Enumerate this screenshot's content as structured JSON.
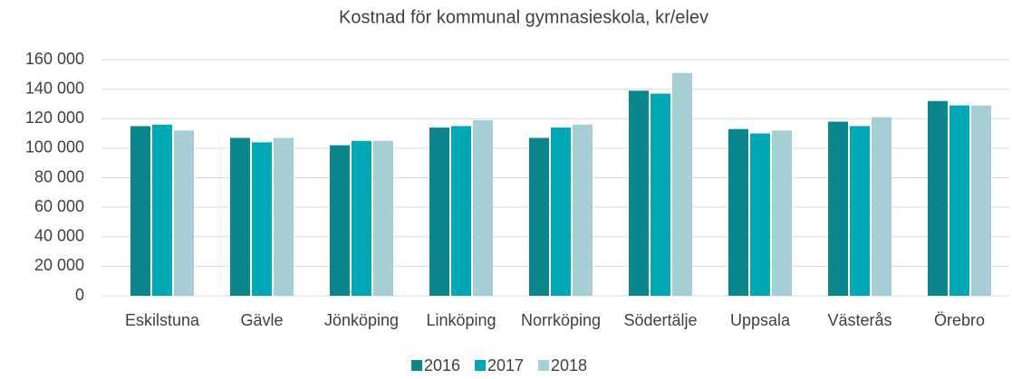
{
  "chart_data": {
    "type": "bar",
    "title": "Kostnad för kommunal gymnasieskola, kr/elev",
    "categories": [
      "Eskilstuna",
      "Gävle",
      "Jönköping",
      "Linköping",
      "Norrköping",
      "Södertälje",
      "Uppsala",
      "Västerås",
      "Örebro"
    ],
    "series": [
      {
        "name": "2016",
        "color": "#0a878d",
        "values": [
          115000,
          107000,
          102000,
          114000,
          107000,
          139000,
          113000,
          118000,
          132000
        ]
      },
      {
        "name": "2017",
        "color": "#00a7b4",
        "values": [
          116000,
          104000,
          105000,
          115000,
          114000,
          137000,
          110000,
          115000,
          129000
        ]
      },
      {
        "name": "2018",
        "color": "#a5cfd5",
        "values": [
          112000,
          107000,
          105000,
          119000,
          116000,
          151000,
          112000,
          121000,
          129000
        ]
      }
    ],
    "ylim": [
      0,
      160000
    ],
    "yticks": [
      0,
      {
        "value": 20000,
        "label": "20 000"
      },
      {
        "value": 40000,
        "label": "40 000"
      },
      {
        "value": 60000,
        "label": "60 000"
      },
      {
        "value": 80000,
        "label": "80 000"
      },
      {
        "value": 100000,
        "label": "100 000"
      },
      {
        "value": 120000,
        "label": "120 000"
      },
      {
        "value": 140000,
        "label": "140 000"
      },
      {
        "value": 160000,
        "label": "160 000"
      }
    ],
    "grid": true,
    "legend": "bottom"
  }
}
